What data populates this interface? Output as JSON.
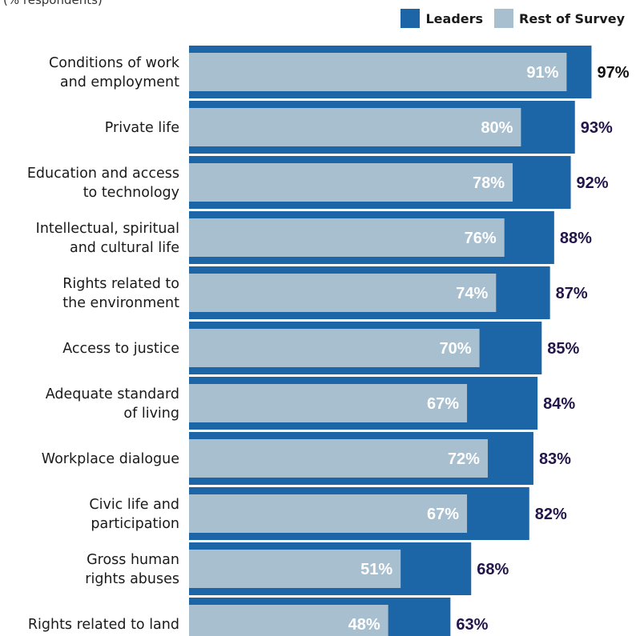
{
  "chart_data": {
    "type": "bar",
    "orientation": "horizontal",
    "subtitle": "(% respondents)",
    "categories": [
      [
        "Conditions of work",
        "and employment"
      ],
      [
        "Private life"
      ],
      [
        "Education and access",
        "to technology"
      ],
      [
        "Intellectual, spiritual",
        "and cultural life"
      ],
      [
        "Rights related to",
        "the environment"
      ],
      [
        "Access to justice"
      ],
      [
        "Adequate standard",
        "of living"
      ],
      [
        "Workplace dialogue"
      ],
      [
        "Civic life and",
        "participation"
      ],
      [
        "Gross human",
        "rights abuses"
      ],
      [
        "Rights related to land"
      ]
    ],
    "series": [
      {
        "name": "Leaders",
        "color": "#1c65a6",
        "values": [
          97,
          93,
          92,
          88,
          87,
          85,
          84,
          83,
          82,
          68,
          63
        ],
        "labels": [
          "97%",
          "93%",
          "92%",
          "88%",
          "87%",
          "85%",
          "84%",
          "83%",
          "82%",
          "68%",
          "63%"
        ]
      },
      {
        "name": "Rest of Survey",
        "color": "#a7bfcf",
        "values": [
          91,
          80,
          78,
          76,
          74,
          70,
          67,
          72,
          67,
          51,
          48
        ],
        "labels": [
          "91%",
          "80%",
          "78%",
          "76%",
          "74%",
          "70%",
          "67%",
          "72%",
          "67%",
          "51%",
          "48%"
        ]
      }
    ],
    "first_value_label_color": "#111111",
    "value_label_color": "#23154a",
    "xlim": [
      0,
      100
    ],
    "grid": false,
    "legend_position": "top-right"
  }
}
